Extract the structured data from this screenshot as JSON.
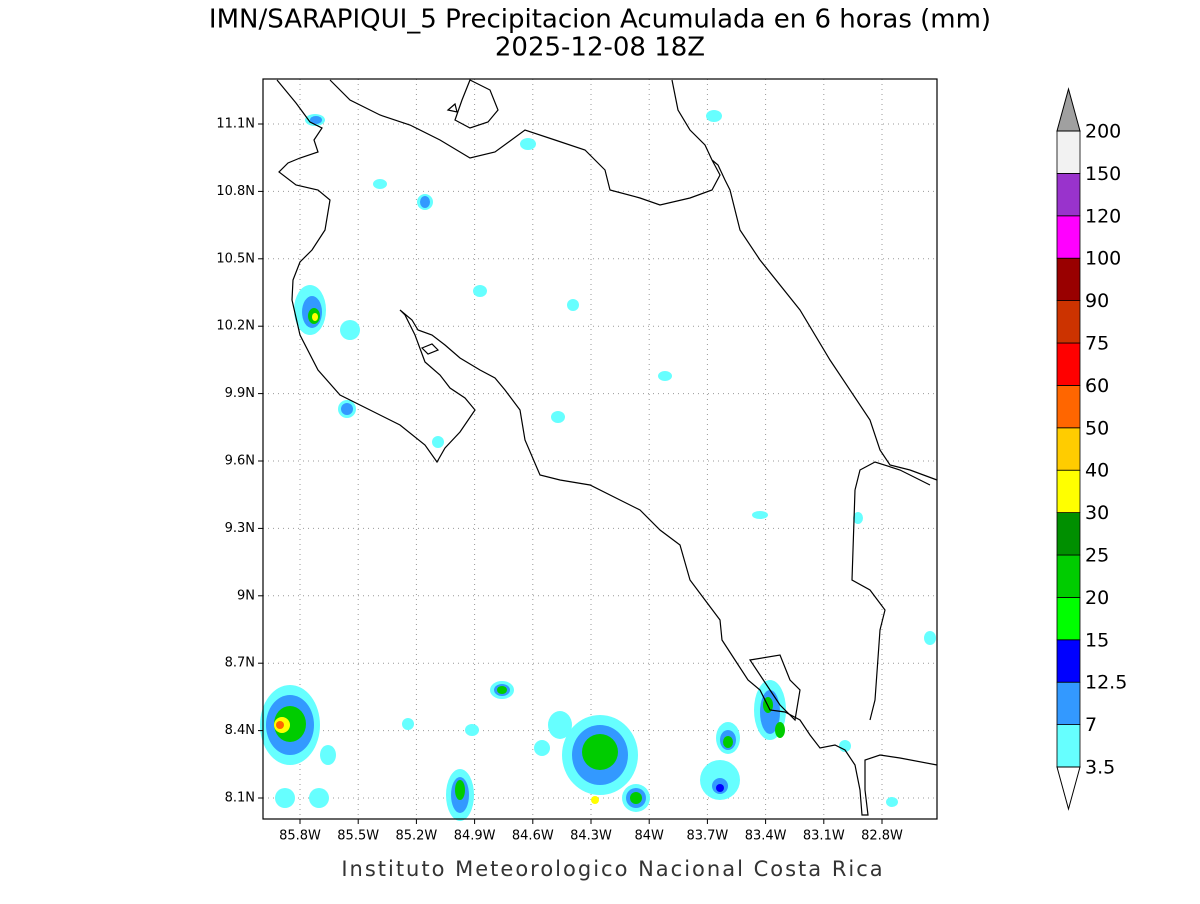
{
  "title": "IMN/SARAPIQUI_5 Precipitacion Acumulada en 6 horas (mm)",
  "subtitle": "2025-12-08 18Z",
  "longitude_ticks": [
    "85.8W",
    "85.5W",
    "85.2W",
    "84.9W",
    "84.6W",
    "84.3W",
    "84W",
    "83.7W",
    "83.4W",
    "83.1W",
    "82.8W"
  ],
  "latitude_ticks": [
    "11.1N",
    "10.8N",
    "10.5N",
    "10.2N",
    "9.9N",
    "9.6N",
    "9.3N",
    "9N",
    "8.7N",
    "8.4N",
    "8.1N"
  ],
  "colorbar": {
    "levels": [
      3.5,
      7,
      12.5,
      15,
      20,
      25,
      30,
      40,
      50,
      60,
      75,
      90,
      100,
      120,
      150,
      200
    ],
    "colors": [
      "#66ffff",
      "#3399ff",
      "#0000ff",
      "#00ff00",
      "#00cc00",
      "#008f00",
      "#ffff00",
      "#ffcc00",
      "#ff6600",
      "#ff0000",
      "#cc3300",
      "#990000",
      "#ff00ff",
      "#9933cc",
      "#f2f2f2"
    ],
    "under_color": "#ffffff",
    "over_color": "#a0a0a0"
  },
  "footer": "Instituto Meteorologico Nacional Costa Rica"
}
